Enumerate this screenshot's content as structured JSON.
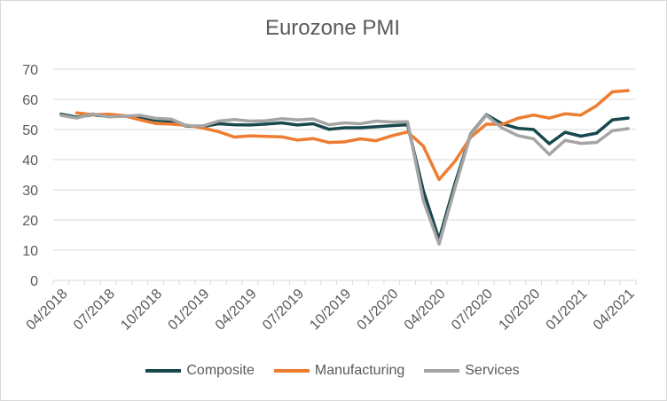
{
  "chart_data": {
    "type": "line",
    "title": "Eurozone PMI",
    "xlabel": "",
    "ylabel": "",
    "ylim": [
      0,
      70
    ],
    "yticks": [
      0,
      10,
      20,
      30,
      40,
      50,
      60,
      70
    ],
    "xtick_labels": [
      "04/2018",
      "07/2018",
      "10/2018",
      "01/2019",
      "04/2019",
      "07/2019",
      "10/2019",
      "01/2020",
      "04/2020",
      "07/2020",
      "10/2020",
      "01/2021",
      "04/2021"
    ],
    "x": [
      "04/2018",
      "05/2018",
      "06/2018",
      "07/2018",
      "08/2018",
      "09/2018",
      "10/2018",
      "11/2018",
      "12/2018",
      "01/2019",
      "02/2019",
      "03/2019",
      "04/2019",
      "05/2019",
      "06/2019",
      "07/2019",
      "08/2019",
      "09/2019",
      "10/2019",
      "11/2019",
      "12/2019",
      "01/2020",
      "02/2020",
      "03/2020",
      "04/2020",
      "05/2020",
      "06/2020",
      "07/2020",
      "08/2020",
      "09/2020",
      "10/2020",
      "11/2020",
      "12/2020",
      "01/2021",
      "02/2021",
      "03/2021",
      "04/2021"
    ],
    "grid": true,
    "legend_position": "bottom",
    "series": [
      {
        "name": "Composite",
        "color": "#17484d",
        "values": [
          55.1,
          54.1,
          54.9,
          54.3,
          54.5,
          54.1,
          53.1,
          52.7,
          51.1,
          51.0,
          51.9,
          51.6,
          51.5,
          51.8,
          52.2,
          51.5,
          51.9,
          50.1,
          50.6,
          50.6,
          50.9,
          51.3,
          51.6,
          29.7,
          13.6,
          31.9,
          48.5,
          54.9,
          51.9,
          50.4,
          50.0,
          45.3,
          49.1,
          47.8,
          48.8,
          53.2,
          53.8
        ]
      },
      {
        "name": "Manufacturing",
        "color": "#ed7d31",
        "values": [
          null,
          55.5,
          54.9,
          55.1,
          54.6,
          53.2,
          52.0,
          51.8,
          51.4,
          50.5,
          49.3,
          47.5,
          47.9,
          47.7,
          47.6,
          46.5,
          47.0,
          45.7,
          45.9,
          46.9,
          46.3,
          47.9,
          49.2,
          44.5,
          33.4,
          39.4,
          47.4,
          51.8,
          51.7,
          53.7,
          54.8,
          53.8,
          55.2,
          54.8,
          57.9,
          62.5,
          62.9
        ]
      },
      {
        "name": "Services",
        "color": "#a5a5a5",
        "values": [
          54.7,
          53.8,
          55.2,
          54.2,
          54.4,
          54.7,
          53.7,
          53.4,
          51.2,
          51.2,
          52.8,
          53.3,
          52.8,
          52.9,
          53.6,
          53.2,
          53.5,
          51.6,
          52.2,
          51.9,
          52.8,
          52.5,
          52.6,
          26.4,
          12.0,
          30.5,
          48.3,
          54.7,
          50.5,
          48.0,
          46.9,
          41.7,
          46.4,
          45.4,
          45.7,
          49.6,
          50.3
        ]
      }
    ]
  }
}
